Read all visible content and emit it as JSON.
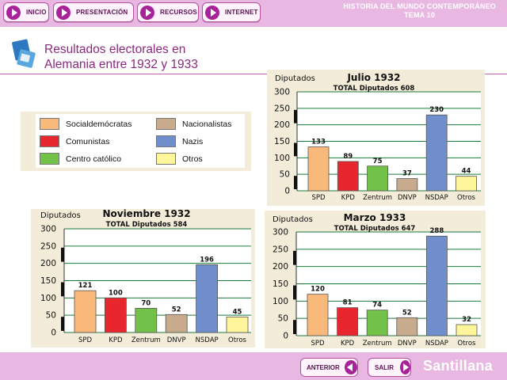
{
  "nav": {
    "buttons": [
      {
        "label": "INICIO"
      },
      {
        "label": "PRESENTACIÓN"
      },
      {
        "label": "RECURSOS"
      },
      {
        "label": "INTERNET"
      }
    ],
    "header_title_line1": "HISTORIA DEL MUNDO CONTEMPORÁNEO",
    "header_title_line2": "TEMA 10"
  },
  "page": {
    "title_line1": "Resultados electorales en",
    "title_line2": "Alemania entre 1932 y 1933"
  },
  "legend": {
    "items": [
      {
        "label": "Socialdemócratas",
        "color": "#f9b97a"
      },
      {
        "label": "Nacionalistas",
        "color": "#c8aa8c"
      },
      {
        "label": "Comunistas",
        "color": "#e8262e"
      },
      {
        "label": "Nazis",
        "color": "#6f8ecb"
      },
      {
        "label": "Centro católico",
        "color": "#72c24a"
      },
      {
        "label": "Otros",
        "color": "#fff59a"
      }
    ]
  },
  "chart_data": [
    {
      "type": "bar",
      "title": "Julio 1932",
      "subtitle": "TOTAL Diputados 608",
      "ylabel": "Diputados",
      "ylim": [
        0,
        300
      ],
      "yticks": [
        0,
        50,
        100,
        150,
        200,
        250,
        300
      ],
      "categories": [
        "SPD",
        "KPD",
        "Zentrum",
        "DNVP",
        "NSDAP",
        "Otros"
      ],
      "values": [
        133,
        89,
        75,
        37,
        230,
        44
      ],
      "value_labels": [
        "133",
        "89",
        "75",
        "37",
        "230",
        "44"
      ],
      "colors": [
        "#f9b97a",
        "#e8262e",
        "#72c24a",
        "#c8aa8c",
        "#6f8ecb",
        "#fff59a"
      ]
    },
    {
      "type": "bar",
      "title": "Noviembre 1932",
      "subtitle": "TOTAL Diputados 584",
      "ylabel": "Diputados",
      "ylim": [
        0,
        300
      ],
      "yticks": [
        0,
        50,
        100,
        150,
        200,
        250,
        300
      ],
      "categories": [
        "SPD",
        "KPD",
        "Zentrum",
        "DNVP",
        "NSDAP",
        "Otros"
      ],
      "values": [
        121,
        100,
        70,
        52,
        196,
        45
      ],
      "value_labels": [
        "121",
        "100",
        "70",
        "52",
        "196",
        "45"
      ],
      "colors": [
        "#f9b97a",
        "#e8262e",
        "#72c24a",
        "#c8aa8c",
        "#6f8ecb",
        "#fff59a"
      ]
    },
    {
      "type": "bar",
      "title": "Marzo 1933",
      "subtitle": "TOTAL Diputados 647",
      "ylabel": "Diputados",
      "ylim": [
        0,
        300
      ],
      "yticks": [
        0,
        50,
        100,
        150,
        200,
        250,
        300
      ],
      "categories": [
        "SPD",
        "KPD",
        "Zentrum",
        "DNVP",
        "NSDAP",
        "Otros"
      ],
      "values": [
        120,
        81,
        74,
        52,
        288,
        32
      ],
      "value_labels": [
        "120",
        "81",
        "74",
        "52",
        "288",
        "32"
      ],
      "colors": [
        "#f9b97a",
        "#e8262e",
        "#72c24a",
        "#c8aa8c",
        "#6f8ecb",
        "#fff59a"
      ]
    }
  ],
  "footer": {
    "prev_label": "ANTERIOR",
    "exit_label": "SALIR",
    "brand": "Santillana"
  }
}
